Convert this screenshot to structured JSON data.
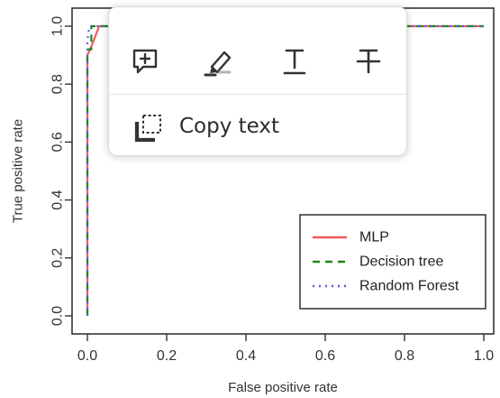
{
  "popup_menu": {
    "tools": [
      {
        "icon": "add-comment-icon"
      },
      {
        "icon": "highlight-pen-icon"
      },
      {
        "icon": "underline-text-icon"
      },
      {
        "icon": "strikethrough-text-icon"
      }
    ],
    "copy_text_label": "Copy text",
    "copy_text_icon": "copy-selection-icon"
  },
  "chart_data": {
    "type": "line",
    "title": "",
    "xlabel": "False positive rate",
    "ylabel": "True positive rate",
    "xlim": [
      0,
      1
    ],
    "ylim": [
      0,
      1
    ],
    "x_ticks": [
      "0.0",
      "0.2",
      "0.4",
      "0.6",
      "0.8",
      "1.0"
    ],
    "y_ticks": [
      "0.0",
      "0.2",
      "0.4",
      "0.6",
      "0.8",
      "1.0"
    ],
    "grid": false,
    "legend_position": "bottom-right",
    "series": [
      {
        "name": "MLP",
        "color": "#f25b5b",
        "style": "solid",
        "x": [
          0,
          0,
          0.01,
          0.03,
          0.05,
          1
        ],
        "y": [
          0,
          0.9,
          0.93,
          1.0,
          1.0,
          1.0
        ]
      },
      {
        "name": "Decision tree",
        "color": "#1a8a1a",
        "style": "dashed",
        "x": [
          0,
          0,
          0.01,
          0.01,
          1
        ],
        "y": [
          0,
          0.92,
          0.92,
          1.0,
          1.0
        ]
      },
      {
        "name": "Random Forest",
        "color": "#5a5aee",
        "style": "dotted",
        "x": [
          0,
          0,
          0.005,
          1
        ],
        "y": [
          0,
          0.95,
          1.0,
          1.0
        ]
      }
    ]
  }
}
